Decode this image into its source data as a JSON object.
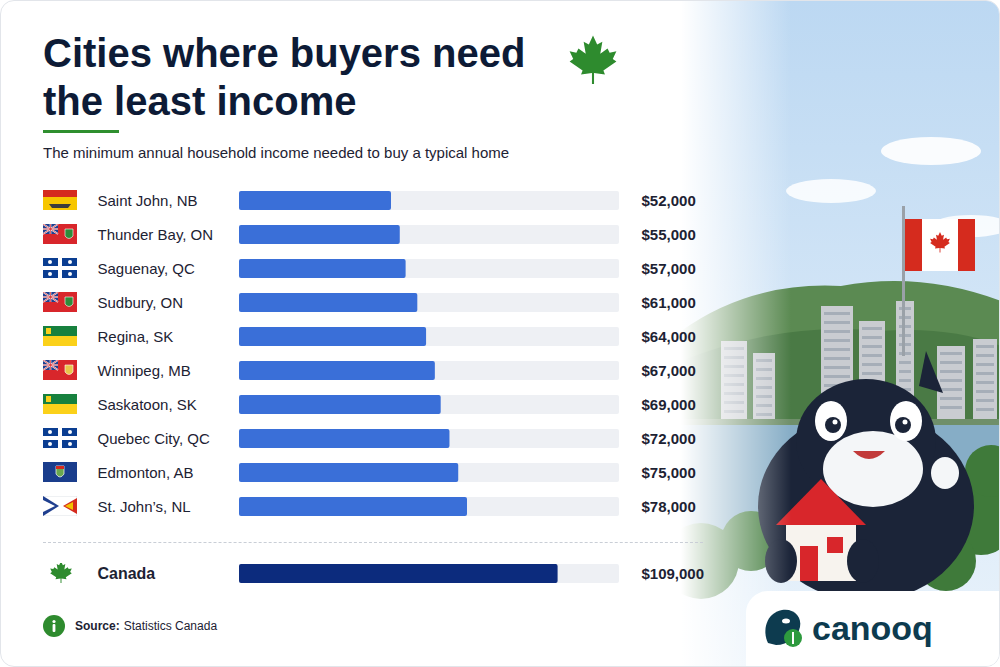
{
  "chart_data": {
    "type": "bar",
    "orientation": "horizontal",
    "title": "Cities where buyers need the least income",
    "subtitle": "The minimum annual household income needed to buy a typical home",
    "categories": [
      "Saint John, NB",
      "Thunder Bay, ON",
      "Saguenay, QC",
      "Sudbury, ON",
      "Regina, SK",
      "Winnipeg, MB",
      "Saskatoon, SK",
      "Quebec City, QC",
      "Edmonton, AB",
      "St. John’s, NL",
      "Canada"
    ],
    "values": [
      52000,
      55000,
      57000,
      61000,
      64000,
      67000,
      69000,
      72000,
      75000,
      78000,
      109000
    ],
    "value_labels": [
      "$52,000",
      "$55,000",
      "$57,000",
      "$61,000",
      "$64,000",
      "$67,000",
      "$69,000",
      "$72,000",
      "$75,000",
      "$78,000",
      "$109,000"
    ],
    "colors": [
      "#3a6fd8",
      "#3a6fd8",
      "#3a6fd8",
      "#3a6fd8",
      "#3a6fd8",
      "#3a6fd8",
      "#3a6fd8",
      "#3a6fd8",
      "#3a6fd8",
      "#3a6fd8",
      "#0c2b7d"
    ],
    "xlim": [
      0,
      130000
    ],
    "data_labels": true,
    "tick_labels": false,
    "source_label": "Source:",
    "source": "Statistics Canada",
    "brand": "canooq"
  }
}
